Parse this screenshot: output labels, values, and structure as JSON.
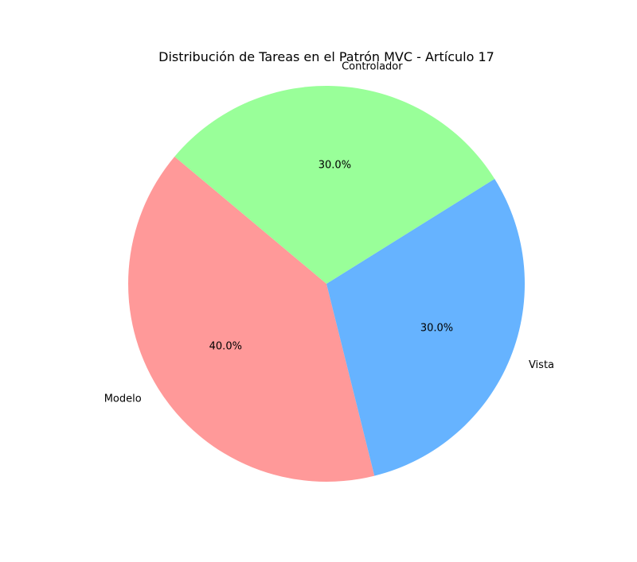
{
  "chart_data": {
    "type": "pie",
    "title": "Distribución de Tareas en el Patrón MVC - Artículo 17",
    "categories": [
      "Modelo",
      "Vista",
      "Controlador"
    ],
    "values": [
      40,
      30,
      30
    ],
    "percent_labels": [
      "40.0%",
      "30.0%",
      "30.0%"
    ],
    "colors": [
      "#ff9999",
      "#66b3ff",
      "#99ff99"
    ],
    "start_angle_deg": 140,
    "direction": "counterclockwise",
    "legend": "none"
  }
}
